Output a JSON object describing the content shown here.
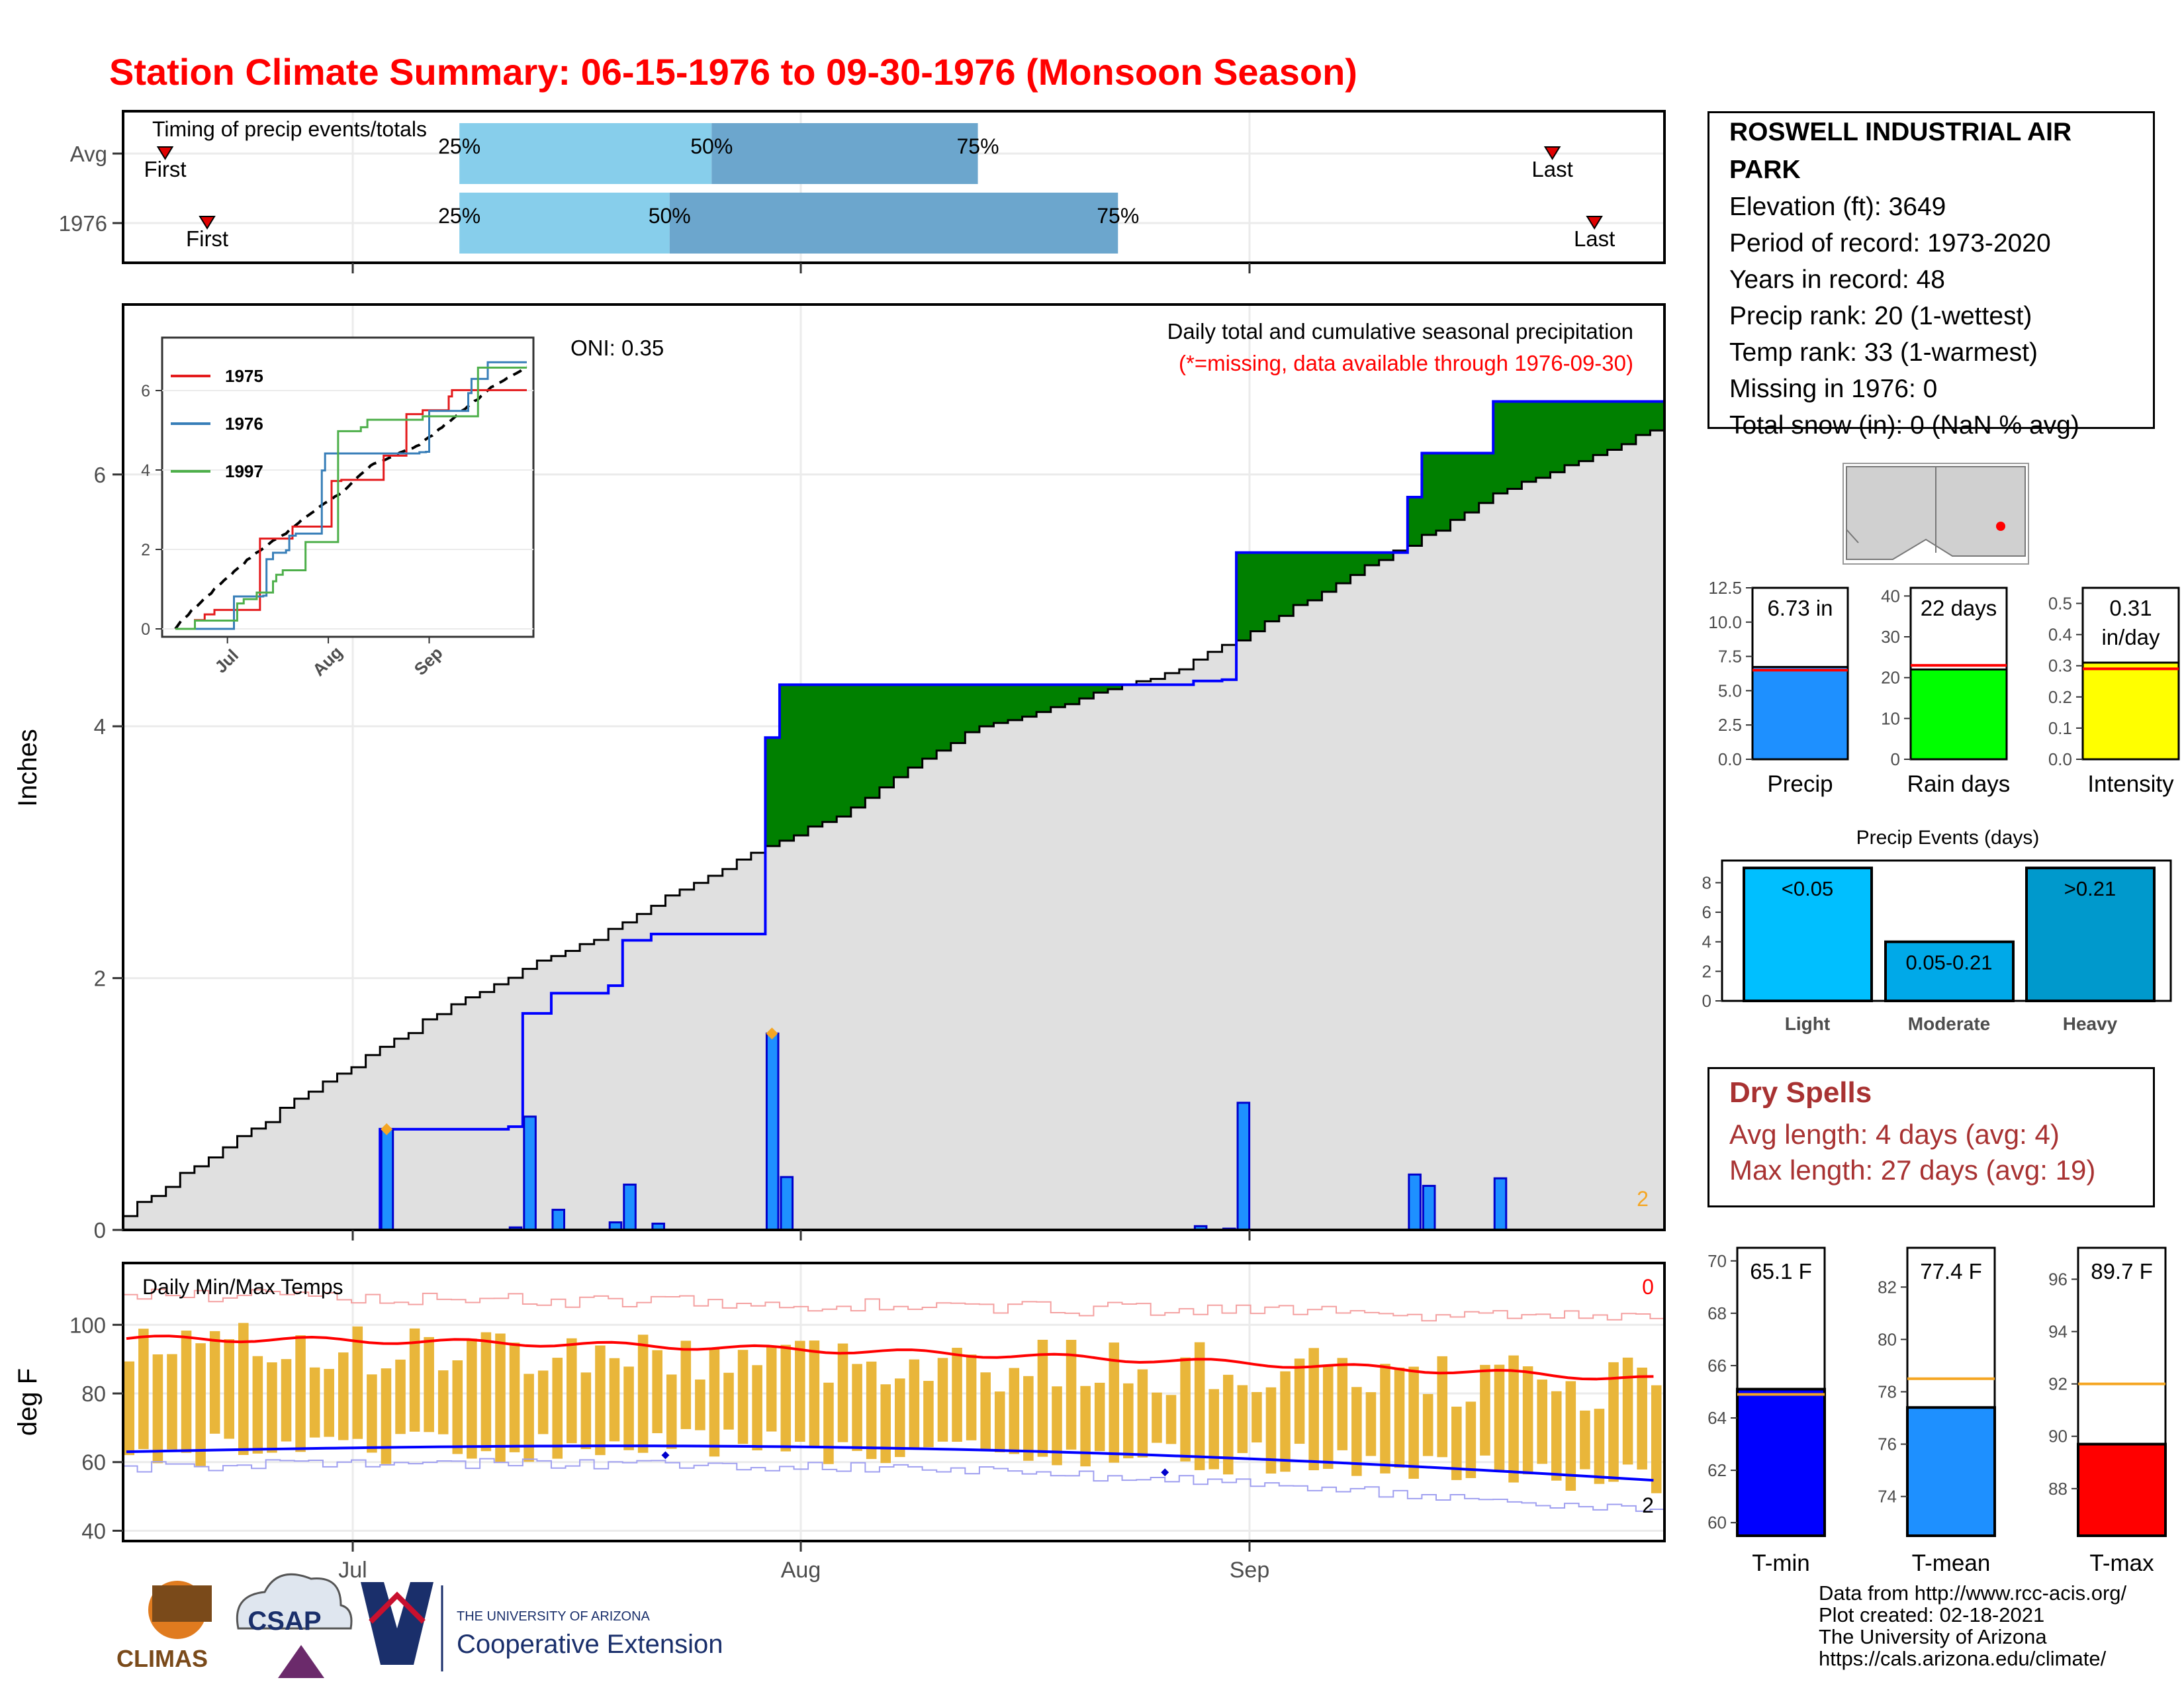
{
  "title": "Station Climate Summary: 06-15-1976 to 09-30-1976 (Monsoon Season)",
  "colors": {
    "title": "#ff0000",
    "precip_bar": "#1e90ff",
    "above": "#008000",
    "below": "#7f5200",
    "avg_fill": "#e0e0e0",
    "line_blue": "#0000ff",
    "tmin": "#0000ff",
    "tmean": "#1e90ff",
    "tmax": "#ff0000",
    "orange": "#f5a623",
    "intensity": "#ffff00",
    "raindays": "#00ff00"
  },
  "timing": {
    "label": "Timing of precip events/totals",
    "rows": [
      {
        "name": "Avg",
        "first_day": 1,
        "last_day": 100,
        "p25": 22,
        "p50": 40,
        "p75": 59,
        "labels": {
          "first": "First",
          "last": "Last",
          "p25": "25%",
          "p50": "50%",
          "p75": "75%"
        }
      },
      {
        "name": "1976",
        "first_day": 4,
        "last_day": 103,
        "p25": 22,
        "p50": 37,
        "p75": 69,
        "labels": {
          "first": "First",
          "last": "Last",
          "p25": "25%",
          "p50": "50%",
          "p75": "75%"
        }
      }
    ]
  },
  "station": {
    "name": "ROSWELL INDUSTRIAL AIR PARK",
    "lines": [
      "Elevation (ft): 3649",
      "Period of record: 1973-2020",
      "Years in record: 48",
      "Precip rank: 20 (1-wettest)",
      "Temp rank: 33 (1-warmest)",
      "Missing in 1976: 0",
      "Total snow (in): 0 (NaN % avg)"
    ]
  },
  "chart_data": [
    {
      "type": "area",
      "title": "Daily total and cumulative seasonal precipitation",
      "subtitle": "(*=missing, data available through 1976-09-30)",
      "ylabel": "Inches",
      "oni": "ONI: 0.35",
      "corner_count": "2",
      "x_ticks": [
        "Jul",
        "Aug",
        "Sep"
      ],
      "y_ticks": [
        "0",
        "2",
        "4",
        "6"
      ],
      "ylim": [
        0,
        7.35
      ],
      "start_date": "1976-06-15",
      "daily_precip": [
        [
          18,
          0.8
        ],
        [
          27,
          0.02
        ],
        [
          28,
          0.9
        ],
        [
          30,
          0.16
        ],
        [
          34,
          0.06
        ],
        [
          35,
          0.36
        ],
        [
          37,
          0.05
        ],
        [
          45,
          1.56
        ],
        [
          46,
          0.42
        ],
        [
          75,
          0.03
        ],
        [
          77,
          0.01
        ],
        [
          78,
          1.01
        ],
        [
          90,
          0.44
        ],
        [
          91,
          0.35
        ],
        [
          96,
          0.41
        ]
      ],
      "avg_cumulative_end": 6.35
    },
    {
      "type": "line",
      "title": "",
      "series": [
        {
          "name": "1975"
        },
        {
          "name": "1976"
        },
        {
          "name": "1997"
        }
      ],
      "x_ticks": [
        "Jul",
        "Aug",
        "Sep"
      ],
      "y_ticks": [
        "0",
        "2",
        "4",
        "6"
      ],
      "ylim": [
        0,
        7.2
      ]
    },
    {
      "type": "bar",
      "title": "",
      "categories": [
        "Precip",
        "Rain days",
        "Intensity"
      ],
      "values": [
        6.73,
        22,
        0.31
      ],
      "averages": [
        6.5,
        23,
        0.29
      ],
      "labels": [
        "6.73 in",
        "22 days",
        "0.31\nin/day"
      ],
      "ylims": [
        [
          0,
          12.5
        ],
        [
          0,
          42
        ],
        [
          0,
          0.55
        ]
      ],
      "y_ticks": [
        [
          "0.0",
          "2.5",
          "5.0",
          "7.5",
          "10.0",
          "12.5"
        ],
        [
          "0",
          "10",
          "20",
          "30",
          "40"
        ],
        [
          "0.0",
          "0.1",
          "0.2",
          "0.3",
          "0.4",
          "0.5"
        ]
      ]
    },
    {
      "type": "bar",
      "title": "Precip Events (days)",
      "categories": [
        "Light",
        "Moderate",
        "Heavy"
      ],
      "values": [
        9,
        4,
        9
      ],
      "labels": [
        "<0.05",
        "0.05-0.21",
        ">0.21"
      ],
      "y_ticks": [
        "0",
        "2",
        "4",
        "6",
        "8"
      ],
      "ylim": [
        0,
        9.5
      ]
    },
    {
      "type": "bar",
      "title": "Daily Min/Max Temps",
      "ylabel": "deg F",
      "y_ticks": [
        "40",
        "60",
        "80",
        "100"
      ],
      "ylim": [
        37,
        118
      ],
      "x_ticks": [
        "Jul",
        "Aug",
        "Sep"
      ],
      "corner_top": "0",
      "corner_bottom": "2"
    },
    {
      "type": "bar",
      "title": "",
      "categories": [
        "T-min",
        "T-mean",
        "T-max"
      ],
      "values": [
        65.1,
        77.4,
        89.7
      ],
      "averages": [
        64.9,
        78.5,
        92.0
      ],
      "labels": [
        "65.1 F",
        "77.4 F",
        "89.7 F"
      ],
      "y_ticks": [
        [
          "60",
          "62",
          "64",
          "66",
          "68",
          "70"
        ],
        [
          "74",
          "76",
          "78",
          "80",
          "82"
        ],
        [
          "88",
          "90",
          "92",
          "94",
          "96"
        ]
      ]
    }
  ],
  "dry_spells": {
    "title": "Dry Spells",
    "avg": "Avg length: 4 days (avg: 4)",
    "max": "Max length: 27 days (avg: 19)"
  },
  "credits": [
    "Data from http://www.rcc-acis.org/",
    "Plot created: 02-18-2021",
    "The University of Arizona",
    "https://cals.arizona.edu/climate/"
  ],
  "logos": {
    "climas": "CLIMAS",
    "csap": "CSAP",
    "ua_small": "THE UNIVERSITY OF ARIZONA",
    "ua_big": "Cooperative Extension"
  }
}
